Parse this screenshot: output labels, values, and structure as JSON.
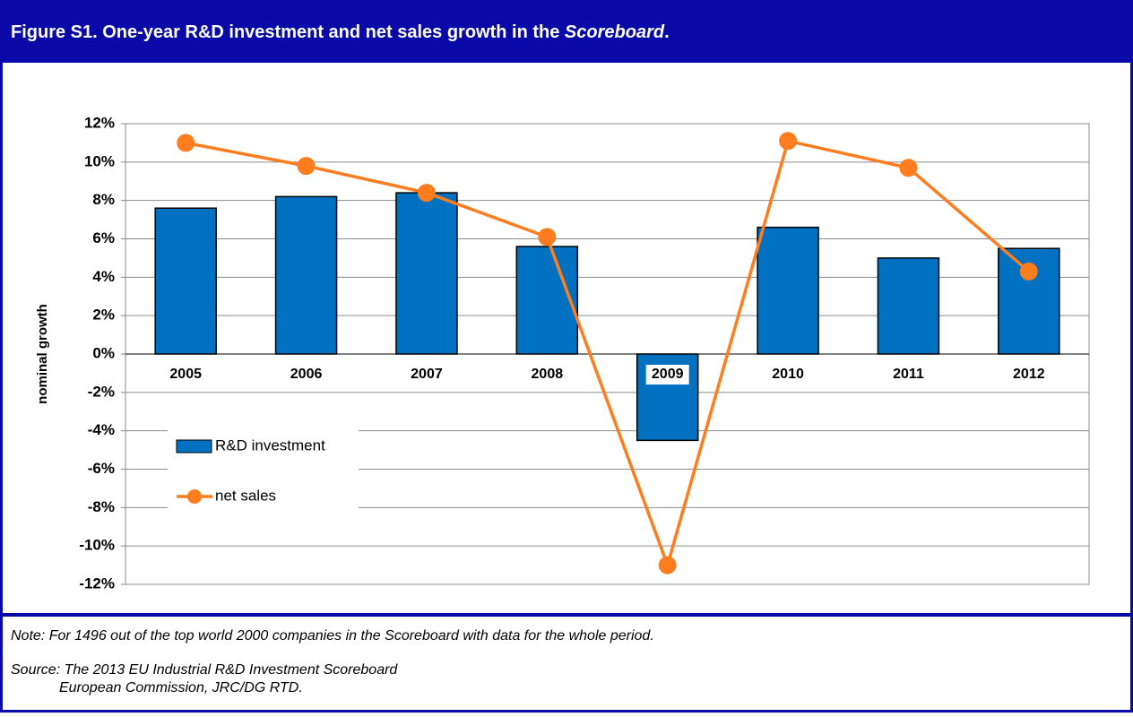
{
  "chart_data": {
    "type": "bar",
    "title": [
      "Figure S1. One-year R&D investment and net sales growth in the ",
      "Scoreboard",
      "."
    ],
    "y_label": "nominal growth",
    "categories": [
      "2005",
      "2006",
      "2007",
      "2008",
      "2009",
      "2010",
      "2011",
      "2012"
    ],
    "series": [
      {
        "name": "R&D investment",
        "type": "bar",
        "color": "#0070c0",
        "values": [
          7.6,
          8.2,
          8.4,
          5.6,
          -4.5,
          6.6,
          5.0,
          5.5
        ]
      },
      {
        "name": "net sales",
        "type": "line",
        "color": "#ff7c1f",
        "values": [
          11.0,
          9.8,
          8.4,
          6.1,
          -11.0,
          11.1,
          9.7,
          4.3
        ]
      }
    ],
    "ylim": [
      -12,
      12
    ],
    "yticks": [
      {
        "value": -12,
        "label": "-12%"
      },
      {
        "value": -10,
        "label": "-10%"
      },
      {
        "value": -8,
        "label": "-8%"
      },
      {
        "value": -6,
        "label": "-6%"
      },
      {
        "value": -4,
        "label": "-4%"
      },
      {
        "value": -2,
        "label": "-2%"
      },
      {
        "value": 0,
        "label": "0%"
      },
      {
        "value": 2,
        "label": "2%"
      },
      {
        "value": 4,
        "label": "4%"
      },
      {
        "value": 6,
        "label": "6%"
      },
      {
        "value": 8,
        "label": "8%"
      },
      {
        "value": 10,
        "label": "10%"
      },
      {
        "value": 12,
        "label": "12%"
      }
    ],
    "grid": true,
    "legend": "lower-left",
    "note": "Note: For 1496 out of the top world 2000 companies in the Scoreboard with data for the whole period.",
    "source": [
      "Source: The 2013 EU Industrial R&D Investment Scoreboard",
      "European Commission, JRC/DG RTD."
    ]
  }
}
